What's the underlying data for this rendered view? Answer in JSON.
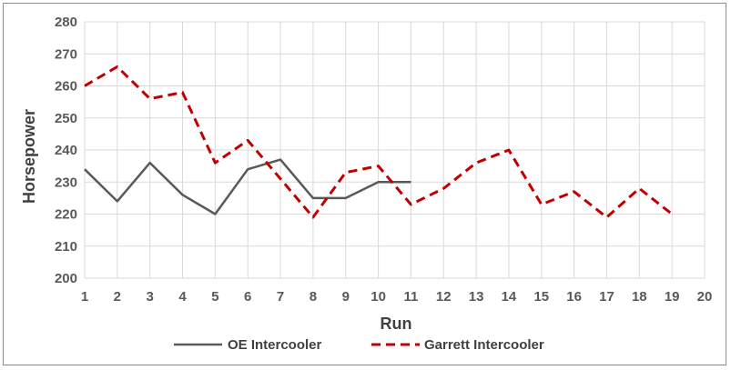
{
  "chart_data": {
    "type": "line",
    "title": "",
    "xlabel": "Run",
    "ylabel": "Horsepower",
    "x": [
      1,
      2,
      3,
      4,
      5,
      6,
      7,
      8,
      9,
      10,
      11,
      12,
      13,
      14,
      15,
      16,
      17,
      18,
      19,
      20
    ],
    "xlim": [
      1,
      20
    ],
    "ylim": [
      200,
      280
    ],
    "yticks": [
      200,
      210,
      220,
      230,
      240,
      250,
      260,
      270,
      280
    ],
    "grid": true,
    "legend_position": "bottom",
    "series": [
      {
        "name": "OE Intercooler",
        "color": "#595959",
        "style": "solid",
        "x": [
          1,
          2,
          3,
          4,
          5,
          6,
          7,
          8,
          9,
          10,
          11
        ],
        "values": [
          234,
          224,
          236,
          226,
          220,
          234,
          237,
          225,
          225,
          230,
          230
        ]
      },
      {
        "name": "Garrett Intercooler",
        "color": "#c00000",
        "style": "dashed",
        "x": [
          1,
          2,
          3,
          4,
          5,
          6,
          7,
          8,
          9,
          10,
          11,
          12,
          13,
          14,
          15,
          16,
          17,
          18,
          19
        ],
        "values": [
          260,
          266,
          256,
          258,
          236,
          243,
          231,
          219,
          233,
          235,
          223,
          228,
          236,
          240,
          223,
          227,
          219,
          228,
          220
        ]
      }
    ]
  }
}
